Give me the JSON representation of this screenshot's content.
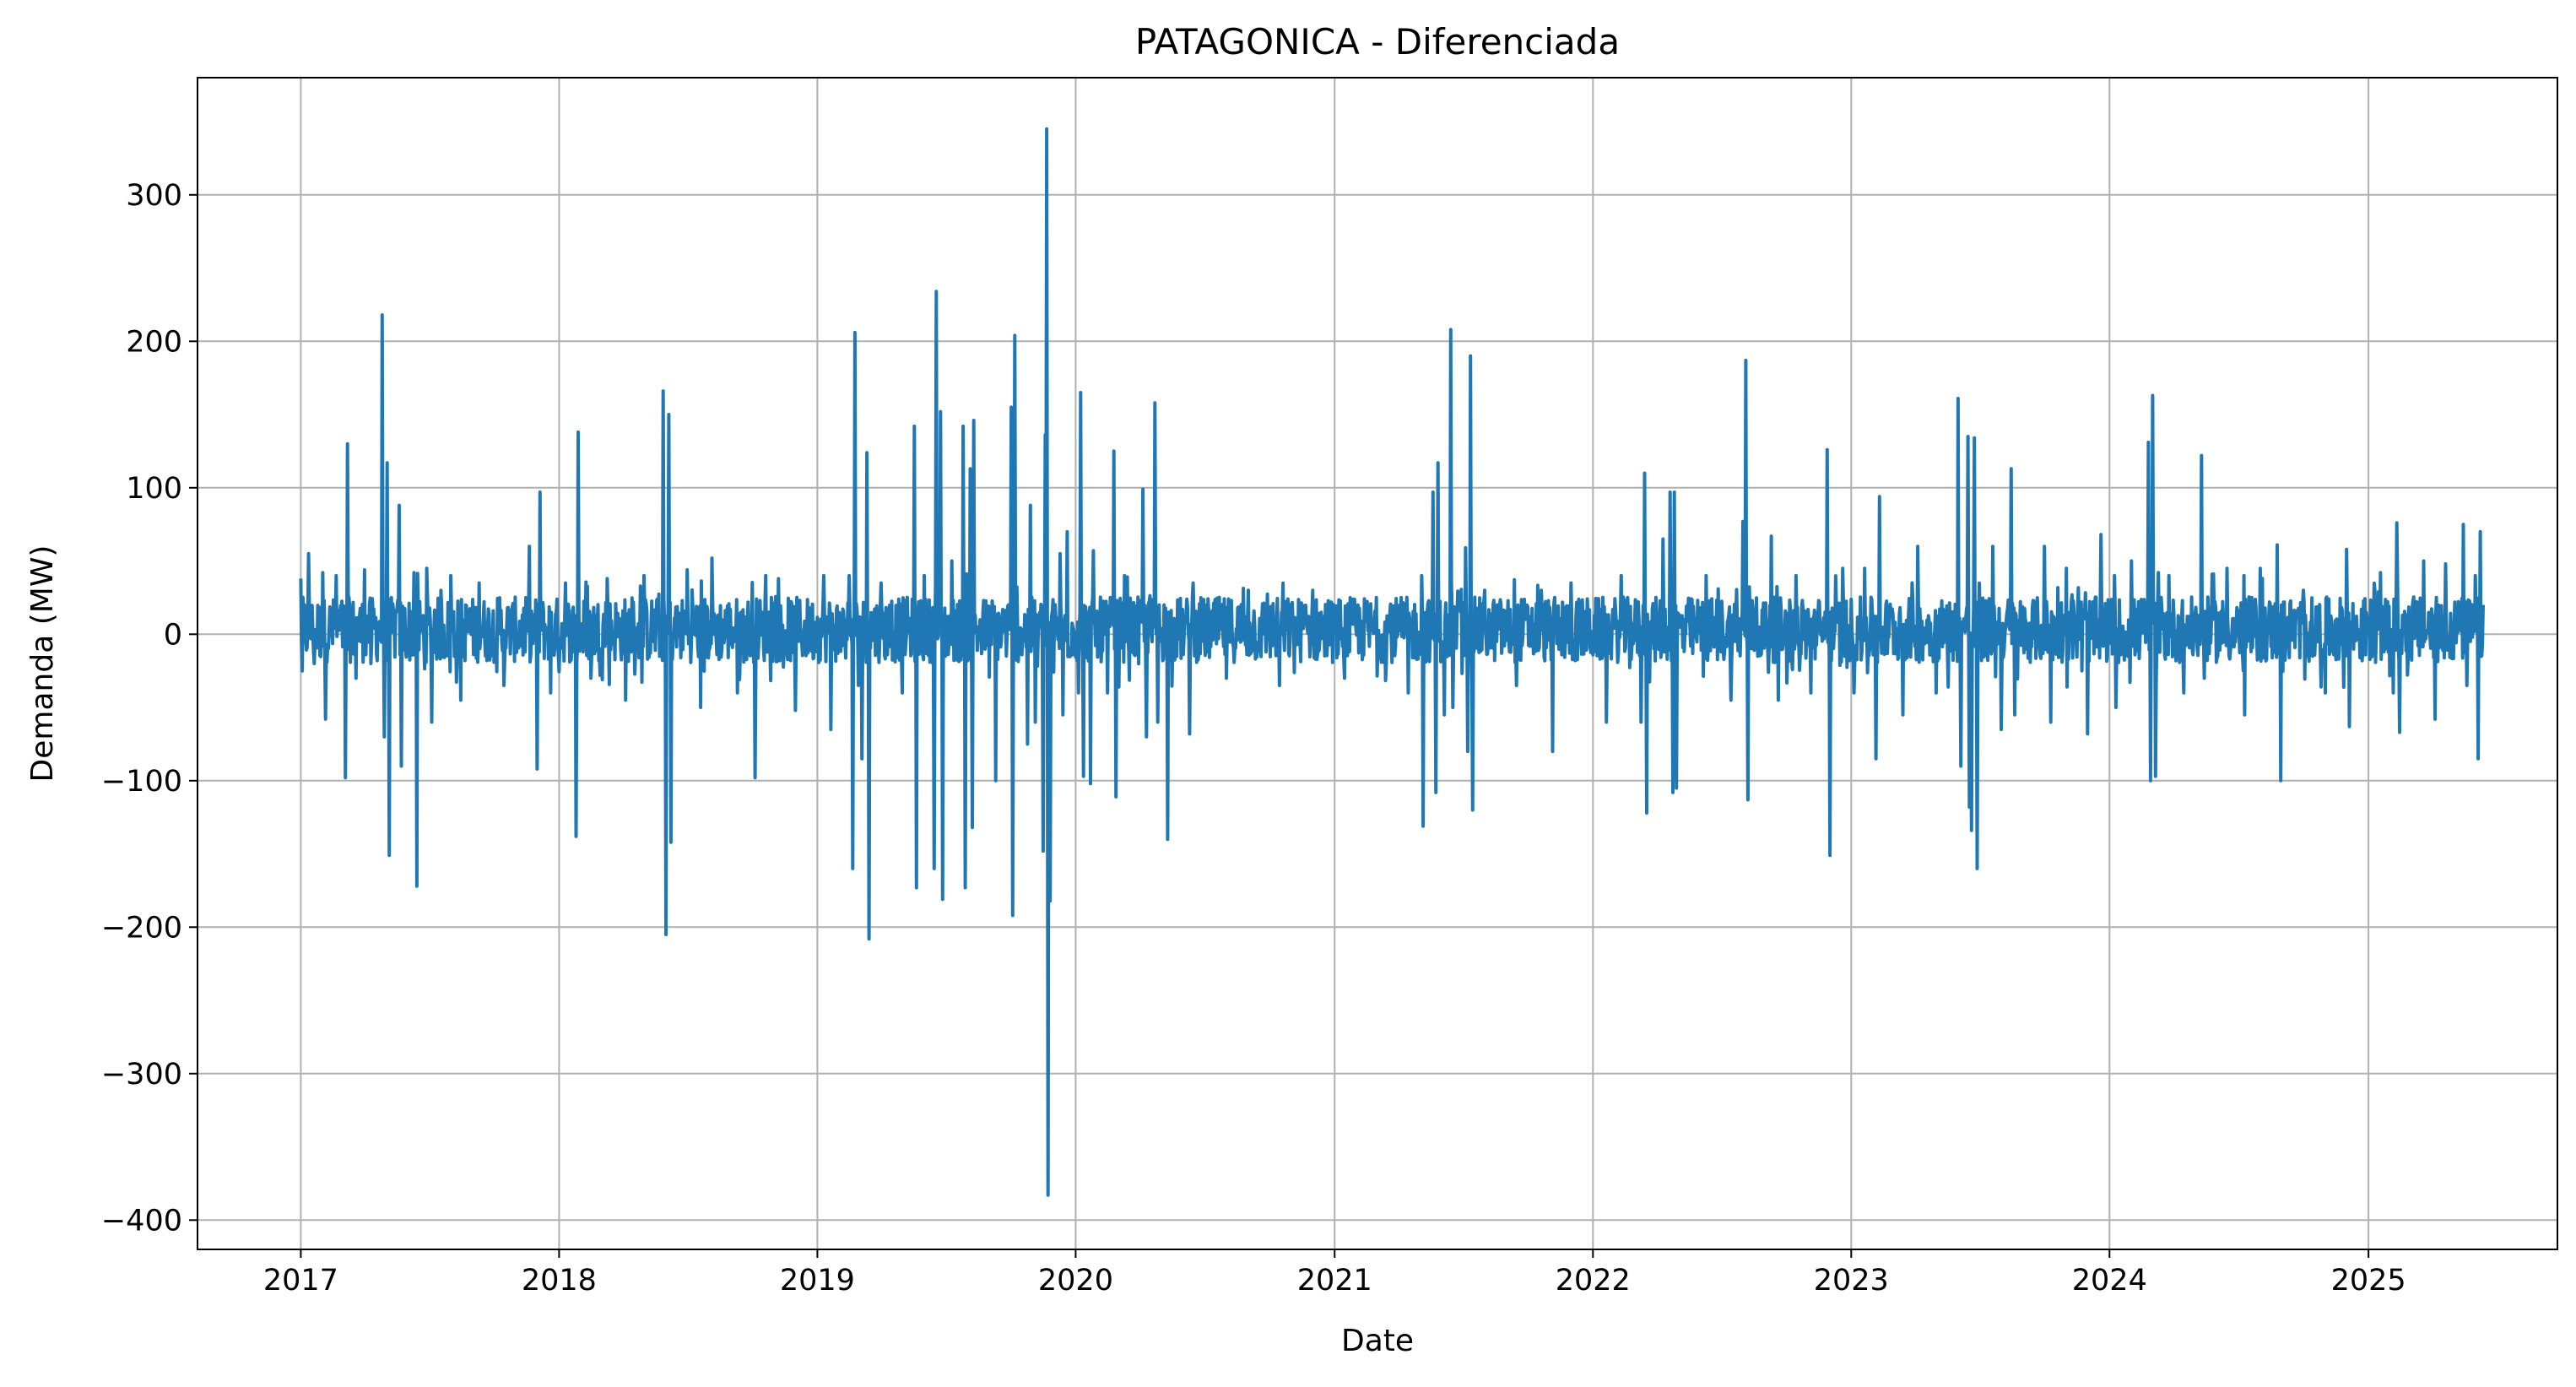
{
  "chart_data": {
    "type": "line",
    "title": "PATAGONICA - Diferenciada",
    "xlabel": "Date",
    "ylabel": "Demanda (MW)",
    "xlim": [
      "2016-08-08",
      "2025-09-25"
    ],
    "ylim": [
      -420,
      380
    ],
    "grid": true,
    "line_color": "#1f77b4",
    "x_ticks": [
      "2017",
      "2018",
      "2019",
      "2020",
      "2021",
      "2022",
      "2023",
      "2024",
      "2025"
    ],
    "x_tick_dates": [
      "2017-01-01",
      "2018-01-01",
      "2019-01-01",
      "2020-01-01",
      "2021-01-01",
      "2022-01-01",
      "2023-01-01",
      "2024-01-01",
      "2025-01-01"
    ],
    "y_ticks": [
      300,
      200,
      100,
      0,
      -100,
      -200,
      -300,
      -400
    ],
    "y_tick_labels": [
      "300",
      "200",
      "100",
      "0",
      "−100",
      "−200",
      "−300",
      "−400"
    ],
    "series": [
      {
        "values_note": "",
        "points": [
          [
            "2017-01-01",
            38
          ],
          [
            "2017-01-03",
            -25
          ],
          [
            "2017-01-12",
            55
          ],
          [
            "2017-01-20",
            -20
          ],
          [
            "2017-02-01",
            42
          ],
          [
            "2017-02-05",
            -58
          ],
          [
            "2017-02-20",
            40
          ],
          [
            "2017-03-05",
            -98
          ],
          [
            "2017-03-08",
            130
          ],
          [
            "2017-03-20",
            -30
          ],
          [
            "2017-04-01",
            44
          ],
          [
            "2017-04-10",
            -20
          ],
          [
            "2017-04-26",
            218
          ],
          [
            "2017-04-29",
            -70
          ],
          [
            "2017-05-03",
            117
          ],
          [
            "2017-05-06",
            -151
          ],
          [
            "2017-05-20",
            88
          ],
          [
            "2017-05-23",
            -90
          ],
          [
            "2017-06-10",
            42
          ],
          [
            "2017-06-14",
            -172
          ],
          [
            "2017-06-28",
            45
          ],
          [
            "2017-07-05",
            -60
          ],
          [
            "2017-08-01",
            40
          ],
          [
            "2017-08-15",
            -45
          ],
          [
            "2017-09-10",
            35
          ],
          [
            "2017-10-15",
            -35
          ],
          [
            "2017-11-20",
            60
          ],
          [
            "2017-12-01",
            -92
          ],
          [
            "2017-12-05",
            97
          ],
          [
            "2017-12-20",
            -40
          ],
          [
            "2018-01-10",
            35
          ],
          [
            "2018-01-25",
            -138
          ],
          [
            "2018-01-28",
            138
          ],
          [
            "2018-02-15",
            -30
          ],
          [
            "2018-03-10",
            38
          ],
          [
            "2018-04-05",
            -45
          ],
          [
            "2018-05-01",
            40
          ],
          [
            "2018-05-28",
            166
          ],
          [
            "2018-06-01",
            -205
          ],
          [
            "2018-06-05",
            150
          ],
          [
            "2018-06-08",
            -142
          ],
          [
            "2018-07-01",
            44
          ],
          [
            "2018-07-20",
            -50
          ],
          [
            "2018-08-05",
            52
          ],
          [
            "2018-09-10",
            -40
          ],
          [
            "2018-10-05",
            -98
          ],
          [
            "2018-10-20",
            40
          ],
          [
            "2018-12-01",
            -52
          ],
          [
            "2019-01-10",
            40
          ],
          [
            "2019-01-20",
            -65
          ],
          [
            "2019-02-15",
            40
          ],
          [
            "2019-02-20",
            -160
          ],
          [
            "2019-02-23",
            206
          ],
          [
            "2019-03-05",
            -85
          ],
          [
            "2019-03-12",
            124
          ],
          [
            "2019-03-15",
            -208
          ],
          [
            "2019-04-01",
            35
          ],
          [
            "2019-05-01",
            -40
          ],
          [
            "2019-05-18",
            142
          ],
          [
            "2019-05-21",
            -173
          ],
          [
            "2019-06-01",
            40
          ],
          [
            "2019-06-15",
            -160
          ],
          [
            "2019-06-18",
            234
          ],
          [
            "2019-06-24",
            152
          ],
          [
            "2019-06-27",
            -181
          ],
          [
            "2019-07-10",
            50
          ],
          [
            "2019-07-26",
            142
          ],
          [
            "2019-07-29",
            -173
          ],
          [
            "2019-08-05",
            113
          ],
          [
            "2019-08-08",
            -132
          ],
          [
            "2019-08-10",
            146
          ],
          [
            "2019-09-10",
            -100
          ],
          [
            "2019-10-02",
            155
          ],
          [
            "2019-10-04",
            -192
          ],
          [
            "2019-10-07",
            204
          ],
          [
            "2019-10-25",
            -75
          ],
          [
            "2019-10-29",
            88
          ],
          [
            "2019-11-05",
            -60
          ],
          [
            "2019-11-16",
            -148
          ],
          [
            "2019-11-19",
            136
          ],
          [
            "2019-11-21",
            345
          ],
          [
            "2019-11-23",
            -383
          ],
          [
            "2019-11-26",
            -182
          ],
          [
            "2019-12-10",
            55
          ],
          [
            "2019-12-14",
            -55
          ],
          [
            "2019-12-20",
            70
          ],
          [
            "2020-01-05",
            -40
          ],
          [
            "2020-01-08",
            165
          ],
          [
            "2020-01-12",
            -97
          ],
          [
            "2020-01-22",
            -102
          ],
          [
            "2020-01-26",
            57
          ],
          [
            "2020-02-15",
            -40
          ],
          [
            "2020-02-24",
            125
          ],
          [
            "2020-02-27",
            -111
          ],
          [
            "2020-03-10",
            40
          ],
          [
            "2020-04-05",
            99
          ],
          [
            "2020-04-10",
            -70
          ],
          [
            "2020-04-22",
            158
          ],
          [
            "2020-04-26",
            -60
          ],
          [
            "2020-05-05",
            20
          ],
          [
            "2020-05-10",
            -140
          ],
          [
            "2020-06-10",
            -68
          ],
          [
            "2020-06-15",
            35
          ],
          [
            "2020-08-01",
            -30
          ],
          [
            "2020-09-01",
            30
          ],
          [
            "2020-10-15",
            -35
          ],
          [
            "2020-12-01",
            30
          ],
          [
            "2021-01-15",
            -30
          ],
          [
            "2021-03-01",
            25
          ],
          [
            "2021-04-15",
            -40
          ],
          [
            "2021-05-04",
            40
          ],
          [
            "2021-05-06",
            -131
          ],
          [
            "2021-05-20",
            97
          ],
          [
            "2021-05-24",
            -108
          ],
          [
            "2021-05-27",
            117
          ],
          [
            "2021-06-05",
            -55
          ],
          [
            "2021-06-14",
            208
          ],
          [
            "2021-06-17",
            -50
          ],
          [
            "2021-07-05",
            59
          ],
          [
            "2021-07-08",
            -80
          ],
          [
            "2021-07-12",
            190
          ],
          [
            "2021-07-15",
            -120
          ],
          [
            "2021-08-01",
            30
          ],
          [
            "2021-09-15",
            -35
          ],
          [
            "2021-10-20",
            30
          ],
          [
            "2021-11-05",
            -80
          ],
          [
            "2021-12-01",
            35
          ],
          [
            "2022-01-20",
            -60
          ],
          [
            "2022-02-10",
            40
          ],
          [
            "2022-03-10",
            -60
          ],
          [
            "2022-03-15",
            110
          ],
          [
            "2022-03-18",
            -122
          ],
          [
            "2022-04-10",
            65
          ],
          [
            "2022-04-20",
            97
          ],
          [
            "2022-04-24",
            -108
          ],
          [
            "2022-04-26",
            97
          ],
          [
            "2022-04-29",
            -105
          ],
          [
            "2022-06-10",
            40
          ],
          [
            "2022-07-15",
            -45
          ],
          [
            "2022-08-01",
            77
          ],
          [
            "2022-08-05",
            187
          ],
          [
            "2022-08-08",
            -113
          ],
          [
            "2022-09-10",
            67
          ],
          [
            "2022-09-20",
            -45
          ],
          [
            "2022-10-15",
            40
          ],
          [
            "2022-11-05",
            -40
          ],
          [
            "2022-11-28",
            126
          ],
          [
            "2022-12-02",
            -151
          ],
          [
            "2022-12-20",
            45
          ],
          [
            "2023-01-05",
            -40
          ],
          [
            "2023-01-20",
            45
          ],
          [
            "2023-02-05",
            -85
          ],
          [
            "2023-02-10",
            94
          ],
          [
            "2023-03-15",
            -55
          ],
          [
            "2023-04-05",
            60
          ],
          [
            "2023-05-01",
            -40
          ],
          [
            "2023-06-01",
            161
          ],
          [
            "2023-06-05",
            -90
          ],
          [
            "2023-06-15",
            135
          ],
          [
            "2023-06-17",
            -118
          ],
          [
            "2023-06-20",
            -134
          ],
          [
            "2023-06-24",
            134
          ],
          [
            "2023-06-28",
            -160
          ],
          [
            "2023-07-20",
            60
          ],
          [
            "2023-08-01",
            -65
          ],
          [
            "2023-08-15",
            113
          ],
          [
            "2023-08-20",
            -55
          ],
          [
            "2023-10-01",
            60
          ],
          [
            "2023-10-10",
            -60
          ],
          [
            "2023-11-01",
            45
          ],
          [
            "2023-12-01",
            -68
          ],
          [
            "2023-12-20",
            68
          ],
          [
            "2024-01-10",
            -50
          ],
          [
            "2024-02-01",
            50
          ],
          [
            "2024-02-25",
            131
          ],
          [
            "2024-02-28",
            -100
          ],
          [
            "2024-03-02",
            163
          ],
          [
            "2024-03-06",
            -97
          ],
          [
            "2024-03-25",
            40
          ],
          [
            "2024-04-15",
            -40
          ],
          [
            "2024-05-10",
            122
          ],
          [
            "2024-05-14",
            -30
          ],
          [
            "2024-06-15",
            45
          ],
          [
            "2024-07-10",
            -55
          ],
          [
            "2024-08-01",
            45
          ],
          [
            "2024-08-25",
            61
          ],
          [
            "2024-08-30",
            -100
          ],
          [
            "2024-10-01",
            30
          ],
          [
            "2024-11-01",
            -40
          ],
          [
            "2024-12-01",
            58
          ],
          [
            "2024-12-05",
            -63
          ],
          [
            "2025-01-10",
            30
          ],
          [
            "2025-02-05",
            -40
          ],
          [
            "2025-02-10",
            76
          ],
          [
            "2025-02-14",
            -67
          ],
          [
            "2025-03-20",
            50
          ],
          [
            "2025-04-05",
            -58
          ],
          [
            "2025-04-20",
            48
          ],
          [
            "2025-05-15",
            75
          ],
          [
            "2025-05-20",
            -35
          ],
          [
            "2025-06-01",
            40
          ],
          [
            "2025-06-05",
            -85
          ],
          [
            "2025-06-08",
            70
          ],
          [
            "2025-06-12",
            20
          ]
        ]
      }
    ]
  }
}
